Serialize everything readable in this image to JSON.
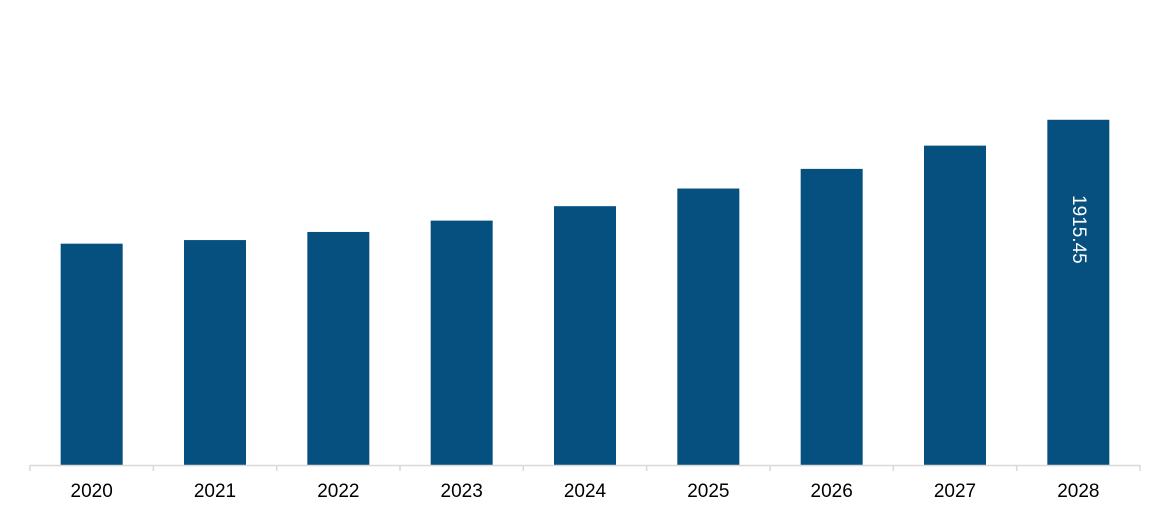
{
  "chart_data": {
    "type": "bar",
    "categories": [
      "2020",
      "2021",
      "2022",
      "2023",
      "2024",
      "2025",
      "2026",
      "2027",
      "2028"
    ],
    "values": [
      1228,
      1248,
      1293,
      1356,
      1436,
      1534,
      1643,
      1772,
      1915.45
    ],
    "data_labels": [
      "",
      "",
      "",
      "",
      "",
      "",
      "",
      "",
      "1915.45"
    ],
    "ylim": [
      0,
      2580
    ],
    "grid": false,
    "legend": "none",
    "bar_color": "#06507F",
    "axis_color": "#D9D9D9",
    "label_color": "#FFFFFF"
  }
}
